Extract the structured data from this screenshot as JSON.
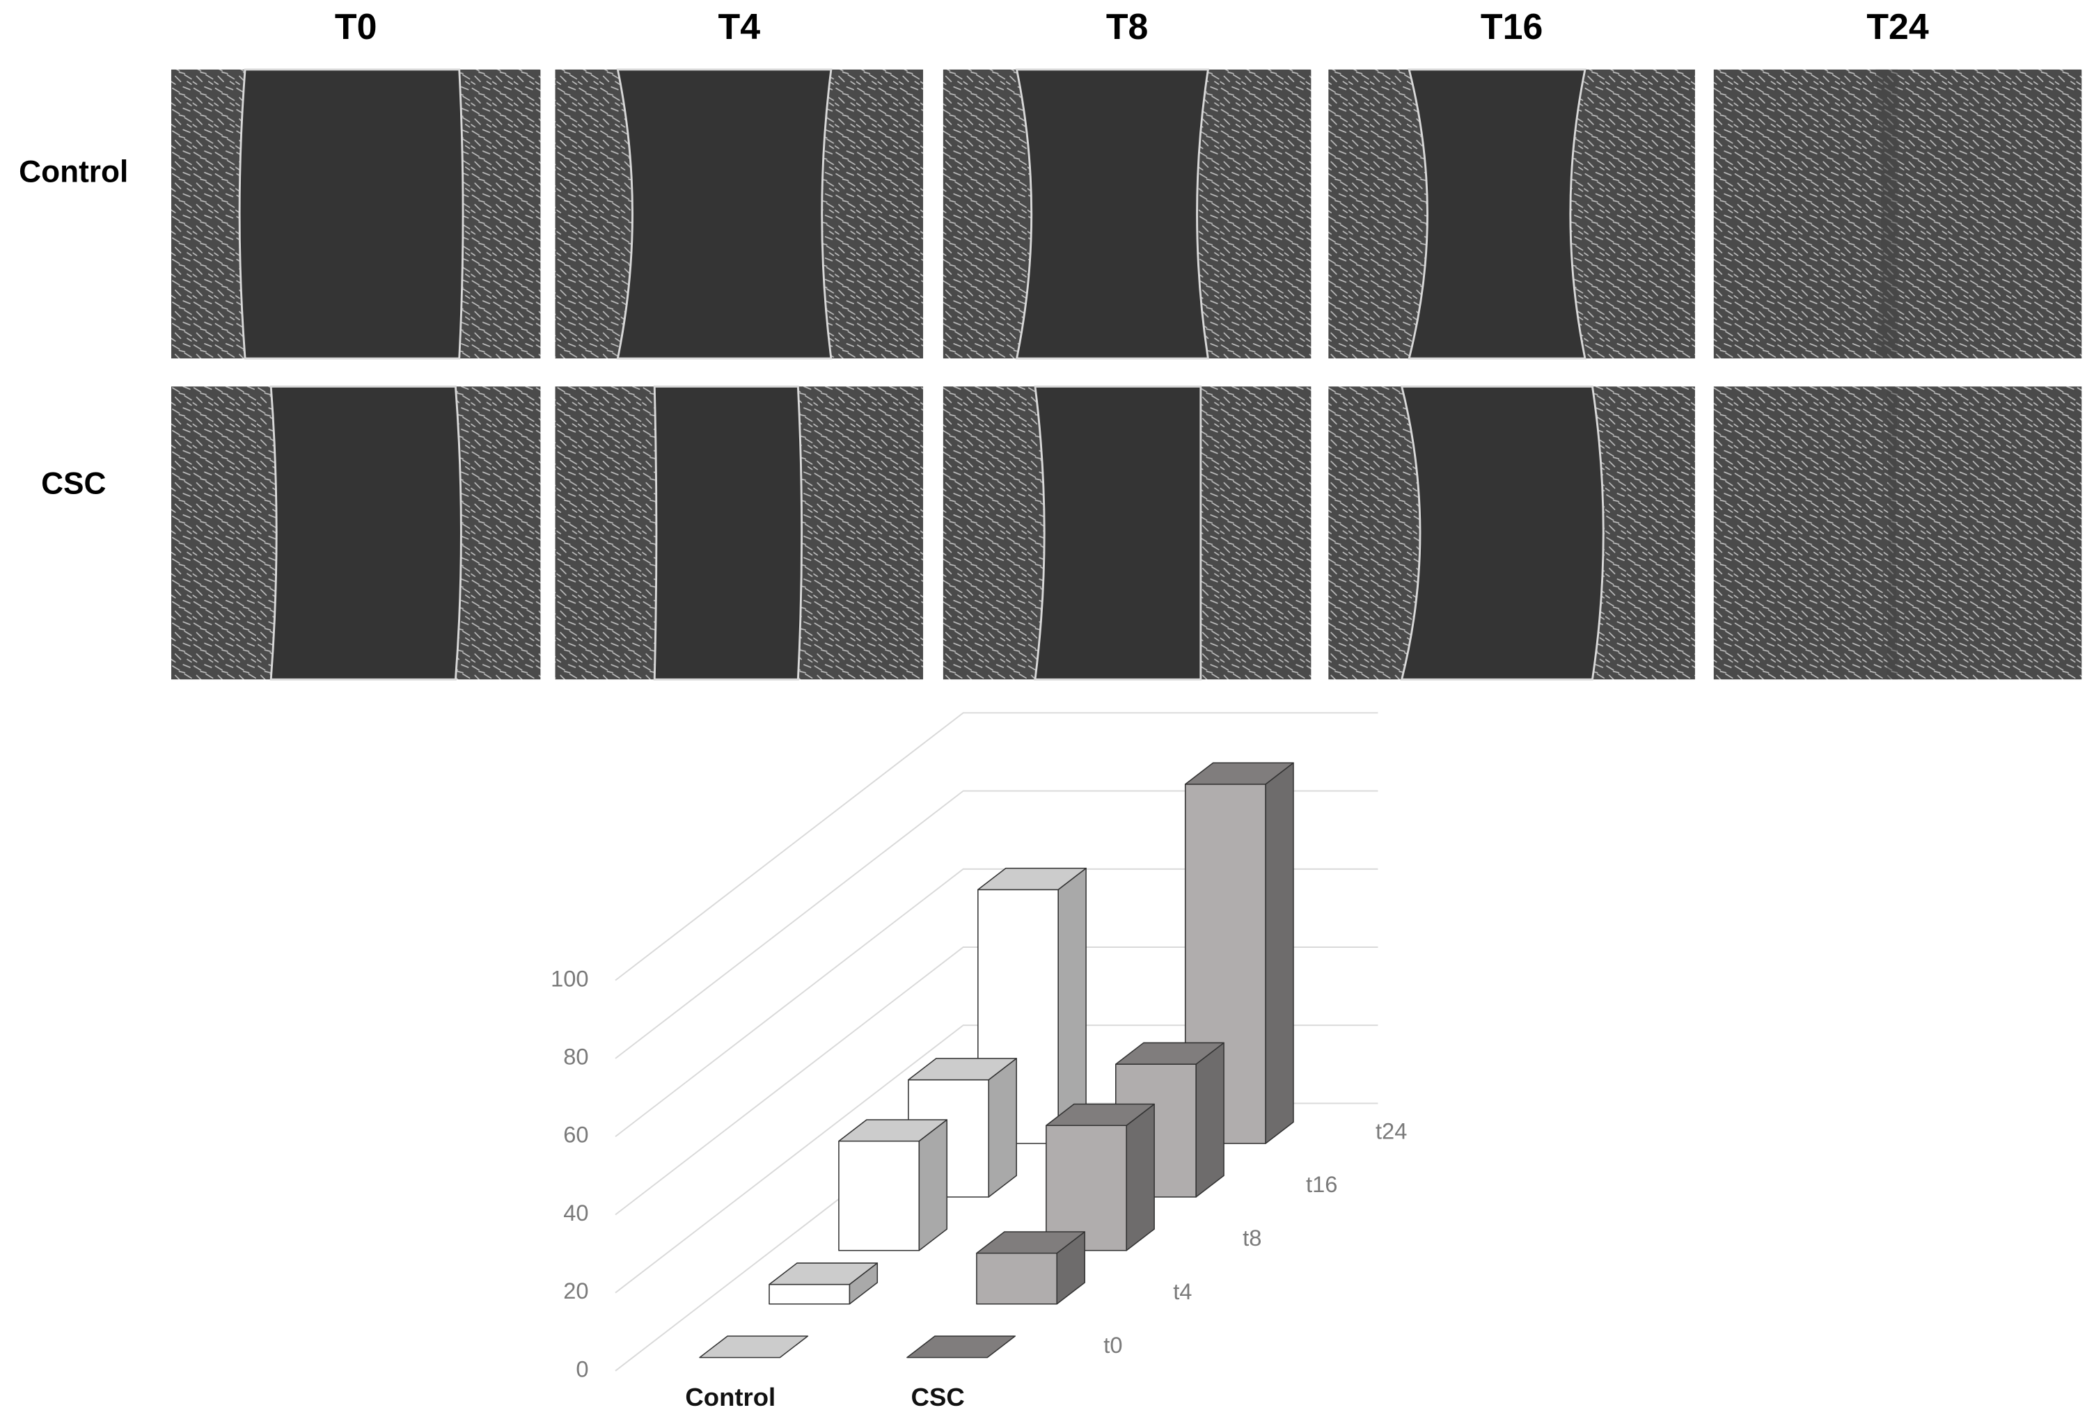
{
  "panel": {
    "columns": [
      "T0",
      "T4",
      "T8",
      "T16",
      "T24"
    ],
    "rows": [
      "Control",
      "CSC"
    ]
  },
  "chart_data": {
    "type": "bar",
    "categories": [
      "Control",
      "CSC"
    ],
    "category_colors": [
      "#ffffff",
      "#b0adad"
    ],
    "series": [
      {
        "name": "t0",
        "values": [
          0,
          0
        ]
      },
      {
        "name": "t4",
        "values": [
          5,
          13
        ]
      },
      {
        "name": "t8",
        "values": [
          28,
          32
        ]
      },
      {
        "name": "t16",
        "values": [
          30,
          34
        ]
      },
      {
        "name": "t24",
        "values": [
          65,
          92
        ]
      }
    ],
    "ylim": [
      0,
      100
    ],
    "yticks": [
      0,
      20,
      40,
      60,
      80,
      100
    ],
    "grid": true
  }
}
